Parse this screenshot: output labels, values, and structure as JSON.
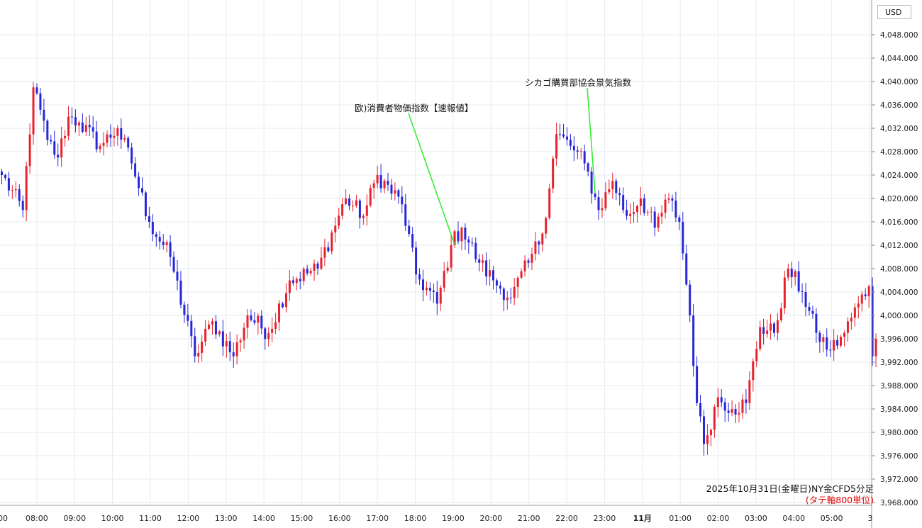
{
  "currency_box": "USD",
  "caption": {
    "line1": "2025年10月31日(金曜日)NY金CFD5分足",
    "line2": "(タテ軸800単位)"
  },
  "colors": {
    "up": "#e8212b",
    "down": "#2727d9",
    "grid": "#e6ebf2",
    "annotation_line": "#33ee33",
    "axis_text": "#222222"
  },
  "chart_data": {
    "type": "candlestick",
    "title": "",
    "ylim": [
      3968,
      4050
    ],
    "y_ticks": [
      "4,048.000",
      "4,044.000",
      "4,040.000",
      "4,036.000",
      "4,032.000",
      "4,028.000",
      "4,024.000",
      "4,020.000",
      "4,016.000",
      "4,012.000",
      "4,008.000",
      "4,004.000",
      "4,000.000",
      "3,996.000",
      "3,992.000",
      "3,988.000",
      "3,984.000",
      "3,980.000",
      "3,976.000",
      "3,972.000",
      "3,968.000"
    ],
    "x_ticks": [
      "00",
      "08:00",
      "09:00",
      "10:00",
      "11:00",
      "12:00",
      "13:00",
      "14:00",
      "15:00",
      "16:00",
      "17:00",
      "18:00",
      "19:00",
      "20:00",
      "21:00",
      "22:00",
      "23:00",
      "11月",
      "01:00",
      "02:00",
      "03:00",
      "04:00",
      "05:00",
      "3"
    ],
    "anchors": [
      {
        "i": 0,
        "p": 4024
      },
      {
        "i": 6,
        "p": 4018
      },
      {
        "i": 9,
        "p": 4039
      },
      {
        "i": 13,
        "p": 4030
      },
      {
        "i": 16,
        "p": 4027
      },
      {
        "i": 19,
        "p": 4034
      },
      {
        "i": 22,
        "p": 4033
      },
      {
        "i": 28,
        "p": 4029
      },
      {
        "i": 33,
        "p": 4032
      },
      {
        "i": 37,
        "p": 4026
      },
      {
        "i": 42,
        "p": 4016
      },
      {
        "i": 48,
        "p": 4010
      },
      {
        "i": 55,
        "p": 3993
      },
      {
        "i": 60,
        "p": 3999
      },
      {
        "i": 66,
        "p": 3993
      },
      {
        "i": 70,
        "p": 4000
      },
      {
        "i": 76,
        "p": 3997
      },
      {
        "i": 82,
        "p": 4006
      },
      {
        "i": 90,
        "p": 4008
      },
      {
        "i": 98,
        "p": 4020
      },
      {
        "i": 103,
        "p": 4017
      },
      {
        "i": 107,
        "p": 4024
      },
      {
        "i": 114,
        "p": 4019
      },
      {
        "i": 118,
        "p": 4007
      },
      {
        "i": 124,
        "p": 4002
      },
      {
        "i": 128,
        "p": 4012
      },
      {
        "i": 131,
        "p": 4015
      },
      {
        "i": 136,
        "p": 4009
      },
      {
        "i": 140,
        "p": 4006
      },
      {
        "i": 145,
        "p": 4003
      },
      {
        "i": 150,
        "p": 4009
      },
      {
        "i": 154,
        "p": 4014
      },
      {
        "i": 158,
        "p": 4031
      },
      {
        "i": 162,
        "p": 4029
      },
      {
        "i": 166,
        "p": 4026
      },
      {
        "i": 170,
        "p": 4018
      },
      {
        "i": 174,
        "p": 4023
      },
      {
        "i": 178,
        "p": 4017
      },
      {
        "i": 182,
        "p": 4020
      },
      {
        "i": 186,
        "p": 4015
      },
      {
        "i": 190,
        "p": 4020
      },
      {
        "i": 193,
        "p": 4016
      },
      {
        "i": 196,
        "p": 4000
      },
      {
        "i": 198,
        "p": 3985
      },
      {
        "i": 200,
        "p": 3978
      },
      {
        "i": 204,
        "p": 3986
      },
      {
        "i": 208,
        "p": 3984
      },
      {
        "i": 212,
        "p": 3985
      },
      {
        "i": 216,
        "p": 3998
      },
      {
        "i": 220,
        "p": 3997
      },
      {
        "i": 224,
        "p": 4008
      },
      {
        "i": 228,
        "p": 4004
      },
      {
        "i": 232,
        "p": 3997
      },
      {
        "i": 236,
        "p": 3994
      },
      {
        "i": 240,
        "p": 3997
      },
      {
        "i": 244,
        "p": 4002
      },
      {
        "i": 247,
        "p": 4005
      },
      {
        "i": 248,
        "p": 3993
      },
      {
        "i": 249,
        "p": 3996
      }
    ]
  },
  "annotations": [
    {
      "label": "欧)消費者物価指数【速報値】"
    },
    {
      "label": "シカゴ購買部協会景気指数"
    }
  ]
}
